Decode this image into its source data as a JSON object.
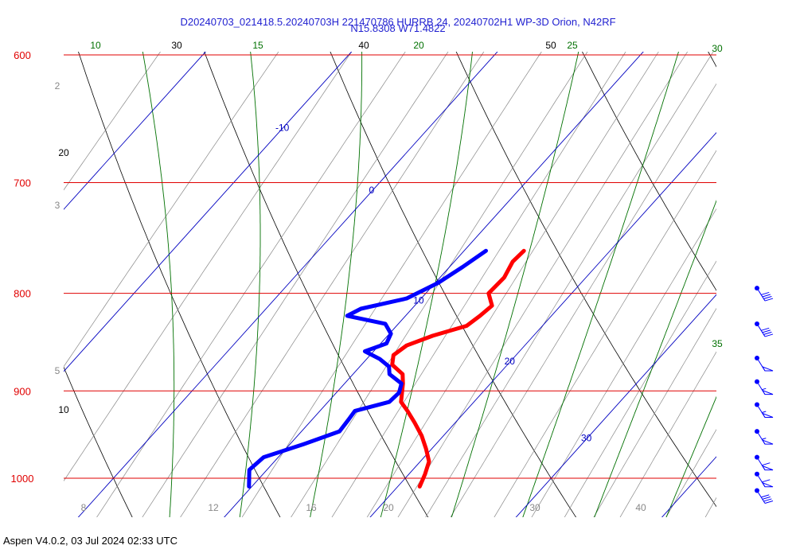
{
  "header": {
    "title_line1": "D20240703_021418.5.20240703H 221470786 HURRB 24, 20240702H1 WP-3D Orion, N42RF",
    "title_line2": "N15.8308 W71.4822"
  },
  "footer": {
    "text": "Aspen V4.0.2, 03 Jul 2024  02:33 UTC"
  },
  "colors": {
    "isobar": "#e00000",
    "temperature": "#ff0000",
    "dewpoint": "#0000ff",
    "isotherm": "#0000c0",
    "dry_adiabat": "#000000",
    "moist_adiabat": "#007000",
    "mixing_ratio": "#888888",
    "title": "#1f1fd0"
  },
  "chart_data": {
    "type": "line",
    "chart_kind": "skew-T log-P diagram",
    "ylim": [
      1040,
      600
    ],
    "y_scale": "log",
    "pressure_levels": [
      600,
      700,
      800,
      900,
      1000
    ],
    "pressure_labels": [
      "600",
      "700",
      "800",
      "900",
      "1000"
    ],
    "isotherm_labels": [
      "-10",
      "0",
      "10",
      "20",
      "30"
    ],
    "dry_adiabat_labels": [
      "10",
      "20",
      "30",
      "40",
      "50"
    ],
    "moist_adiabat_labels": [
      "10",
      "15",
      "20",
      "25",
      "30",
      "35"
    ],
    "mixing_ratio_labels": [
      "2",
      "3",
      "5",
      "8",
      "12",
      "16",
      "20",
      "30",
      "40"
    ],
    "series": [
      {
        "key": "temperature",
        "p": [
          760,
          770,
          785,
          800,
          812,
          822,
          832,
          842,
          852,
          862,
          872,
          882,
          892,
          902,
          912,
          922,
          935,
          950,
          965,
          980,
          995,
          1010
        ],
        "t": [
          14.1,
          14.0,
          14.4,
          14.3,
          15.3,
          15.1,
          14.8,
          13.1,
          11.9,
          11.6,
          12.1,
          13.4,
          14.0,
          14.5,
          15.0,
          16.0,
          17.2,
          18.5,
          19.6,
          20.6,
          21.1,
          21.5
        ]
      },
      {
        "key": "dewpoint",
        "p": [
          760,
          775,
          790,
          805,
          815,
          822,
          830,
          840,
          850,
          858,
          866,
          874,
          882,
          892,
          902,
          912,
          922,
          932,
          945,
          960,
          975,
          990,
          1000,
          1010
        ],
        "td": [
          11.5,
          10.9,
          10.2,
          9.0,
          6.5,
          6.0,
          9.1,
          10.1,
          10.4,
          9.4,
          10.9,
          12.0,
          12.5,
          13.9,
          14.3,
          14.2,
          12.4,
          12.5,
          12.6,
          10.9,
          9.0,
          8.8,
          9.3,
          9.8
        ]
      }
    ],
    "wind_barbs": [
      {
        "p": 795,
        "speed_kt": 40
      },
      {
        "p": 830,
        "speed_kt": 40
      },
      {
        "p": 865,
        "speed_kt": 50
      },
      {
        "p": 890,
        "speed_kt": 55
      },
      {
        "p": 915,
        "speed_kt": 55
      },
      {
        "p": 945,
        "speed_kt": 55
      },
      {
        "p": 975,
        "speed_kt": 60
      },
      {
        "p": 995,
        "speed_kt": 60
      },
      {
        "p": 1015,
        "speed_kt": 40
      }
    ]
  }
}
